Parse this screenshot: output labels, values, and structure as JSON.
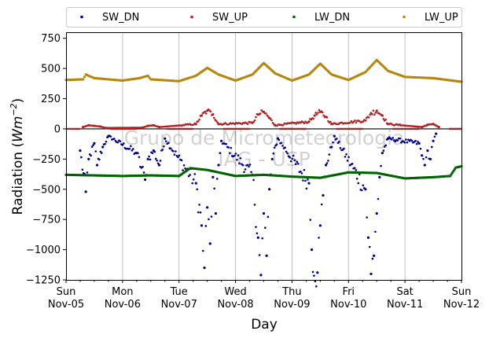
{
  "chart_data": {
    "type": "scatter",
    "xlabel": "Day",
    "ylabel_main": "Radiation (",
    "ylabel_unit_base": "Wm",
    "ylabel_unit_exp": "−2",
    "ylabel_close": ")",
    "watermark_line1": "Grupo de Micrometeorologia",
    "watermark_line2": "IAG - USP",
    "ylim": [
      -1250,
      800
    ],
    "xlim": [
      0,
      7
    ],
    "yticks": [
      {
        "value": 750,
        "label": "750"
      },
      {
        "value": 500,
        "label": "500"
      },
      {
        "value": 250,
        "label": "250"
      },
      {
        "value": 0,
        "label": "0"
      },
      {
        "value": -250,
        "label": "−250"
      },
      {
        "value": -500,
        "label": "−500"
      },
      {
        "value": -750,
        "label": "−750"
      },
      {
        "value": -1000,
        "label": "−1000"
      },
      {
        "value": -1250,
        "label": "−1250"
      }
    ],
    "xticks": [
      {
        "value": 0,
        "day": "Sun",
        "date": "Nov-05"
      },
      {
        "value": 1,
        "day": "Mon",
        "date": "Nov-06"
      },
      {
        "value": 2,
        "day": "Tue",
        "date": "Nov-07"
      },
      {
        "value": 3,
        "day": "Wed",
        "date": "Nov-08"
      },
      {
        "value": 4,
        "day": "Thu",
        "date": "Nov-09"
      },
      {
        "value": 5,
        "day": "Fri",
        "date": "Nov-10"
      },
      {
        "value": 6,
        "day": "Sat",
        "date": "Nov-11"
      },
      {
        "value": 7,
        "day": "Sun",
        "date": "Nov-12"
      }
    ],
    "grid": "vertical",
    "legend_placement": "top",
    "series": [
      {
        "name": "SW_DN",
        "color": "#00008b",
        "daily_peak": [
          -520,
          -420,
          -1150,
          -1210,
          -1190,
          -1200,
          -300
        ],
        "x": [
          0.25,
          0.35,
          0.4,
          0.5,
          0.55,
          0.65,
          0.75,
          1.25,
          1.4,
          1.45,
          1.55,
          1.65,
          1.75,
          2.3,
          2.4,
          2.45,
          2.5,
          2.55,
          2.6,
          2.65,
          2.7,
          2.75,
          3.3,
          3.4,
          3.45,
          3.5,
          3.55,
          3.6,
          3.65,
          3.75,
          4.3,
          4.35,
          4.45,
          4.5,
          4.55,
          4.6,
          4.7,
          4.75,
          5.3,
          5.35,
          5.4,
          5.45,
          5.5,
          5.55,
          5.6,
          5.7,
          6.25,
          6.3,
          6.35,
          6.4,
          6.45,
          6.5,
          6.55
        ],
        "y": [
          -180,
          -520,
          -250,
          -120,
          -300,
          -150,
          -60,
          -200,
          -420,
          -250,
          -180,
          -300,
          -80,
          -450,
          -800,
          -1150,
          -650,
          -950,
          -400,
          -700,
          -300,
          -100,
          -380,
          -900,
          -1210,
          -700,
          -1050,
          -500,
          -250,
          -80,
          -450,
          -1000,
          -1190,
          -800,
          -550,
          -300,
          -150,
          -60,
          -500,
          -900,
          -1200,
          -1050,
          -700,
          -400,
          -200,
          -80,
          -120,
          -220,
          -300,
          -180,
          -250,
          -100,
          -40
        ]
      },
      {
        "name": "SW_UP",
        "color": "#b22222",
        "daily_peak": [
          30,
          30,
          150,
          140,
          140,
          150,
          40
        ],
        "x": [
          0.3,
          0.4,
          0.5,
          0.6,
          0.7,
          1.35,
          1.45,
          1.55,
          1.65,
          2.3,
          2.4,
          2.5,
          2.6,
          2.7,
          3.3,
          3.4,
          3.5,
          3.6,
          3.7,
          4.3,
          4.4,
          4.5,
          4.6,
          4.7,
          5.3,
          5.4,
          5.5,
          5.6,
          5.7,
          6.3,
          6.4,
          6.5,
          6.6
        ],
        "y": [
          15,
          30,
          25,
          20,
          8,
          10,
          25,
          30,
          15,
          40,
          110,
          150,
          120,
          40,
          50,
          120,
          140,
          90,
          30,
          60,
          110,
          140,
          100,
          40,
          70,
          130,
          150,
          110,
          40,
          15,
          35,
          40,
          15
        ]
      },
      {
        "name": "LW_DN",
        "color": "#006400",
        "base": [
          -380,
          -390,
          -330,
          -390,
          -400,
          -360,
          -400
        ],
        "x": [
          0,
          0.5,
          1,
          1.5,
          2,
          2.2,
          2.5,
          3,
          3.5,
          4,
          4.5,
          5,
          5.5,
          6,
          6.5,
          6.8,
          6.9,
          7
        ],
        "y": [
          -380,
          -385,
          -390,
          -385,
          -390,
          -325,
          -340,
          -390,
          -380,
          -395,
          -405,
          -360,
          -365,
          -410,
          -400,
          -390,
          -320,
          -310
        ]
      },
      {
        "name": "LW_UP",
        "color": "#b8860b",
        "base": [
          405,
          390,
          395,
          400,
          400,
          415,
          420
        ],
        "x": [
          0,
          0.3,
          0.35,
          0.5,
          1,
          1.3,
          1.45,
          1.5,
          2,
          2.3,
          2.5,
          2.7,
          3,
          3.3,
          3.5,
          3.7,
          4,
          4.3,
          4.5,
          4.7,
          5,
          5.3,
          5.5,
          5.7,
          6,
          6.5,
          7
        ],
        "y": [
          405,
          410,
          450,
          420,
          400,
          420,
          440,
          410,
          395,
          440,
          505,
          450,
          400,
          450,
          545,
          460,
          400,
          450,
          540,
          450,
          405,
          470,
          570,
          480,
          430,
          420,
          390
        ]
      }
    ]
  }
}
